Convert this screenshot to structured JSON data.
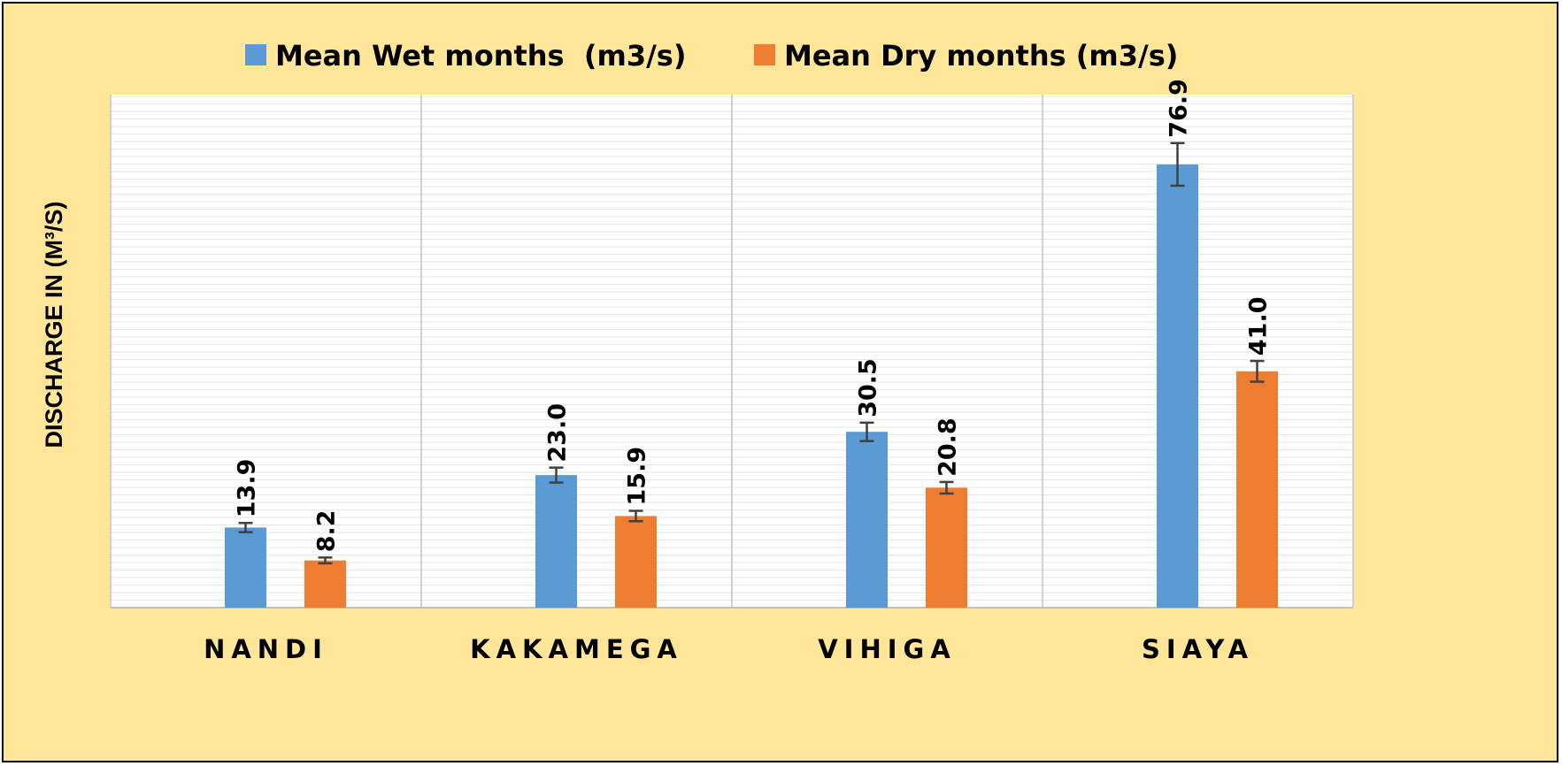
{
  "chart_data": {
    "type": "bar",
    "title": "",
    "xlabel": "",
    "ylabel": "DISCHARGE IN (M³/S)",
    "categories": [
      "NANDI",
      "KAKAMEGA",
      "VIHIGA",
      "SIAYA"
    ],
    "series": [
      {
        "name": "Mean Wet months  (m3/s)",
        "color": "#5B9BD5",
        "values": [
          13.9,
          23.0,
          30.5,
          76.9
        ],
        "labels": [
          "13.9",
          "23.0",
          "30.5",
          "76.9"
        ],
        "error": [
          0.8,
          1.3,
          1.6,
          3.7
        ]
      },
      {
        "name": "Mean Dry months (m3/s)",
        "color": "#ED7D31",
        "values": [
          8.2,
          15.9,
          20.8,
          41.0
        ],
        "labels": [
          "8.2",
          "15.9",
          "20.8",
          "41.0"
        ],
        "error": [
          0.5,
          0.9,
          1.0,
          1.8
        ]
      }
    ],
    "ylim": [
      0,
      89
    ],
    "y_tick_labels": "none",
    "grid": "horizontal minor lines, vertical category separators",
    "legend": "top-center",
    "error_bars": true,
    "background": "#FFE699",
    "plot_background": "#FFFFFF"
  }
}
